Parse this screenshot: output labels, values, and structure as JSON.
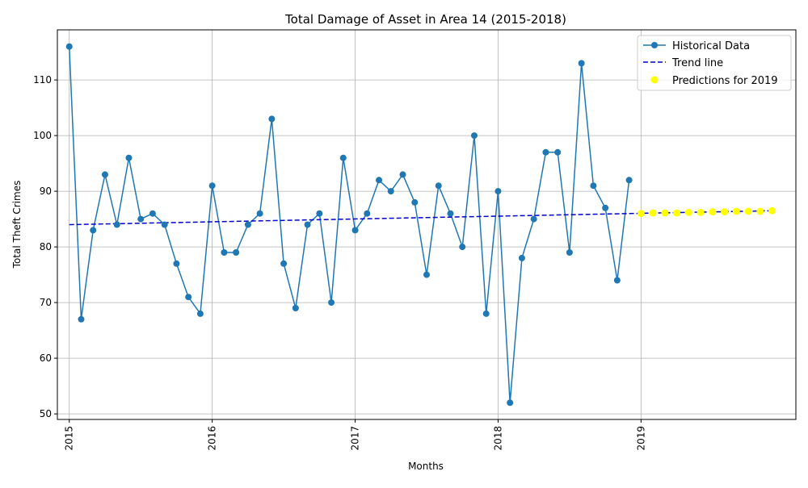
{
  "chart_data": {
    "type": "line",
    "title": "Total Damage of Asset in Area 14 (2015-2018)",
    "xlabel": "Months",
    "ylabel": "Total Theft Crimes",
    "x_ticks": [
      "2015",
      "2016",
      "2017",
      "2018",
      "2019"
    ],
    "y_ticks": [
      50,
      60,
      70,
      80,
      90,
      100,
      110
    ],
    "ylim": [
      49,
      119
    ],
    "xlim": [
      "2014-12",
      "2020-02"
    ],
    "grid": true,
    "legend_position": "top-right",
    "colors": {
      "historical": "#1f77b4",
      "trend": "#0000cc",
      "prediction": "#ffff00",
      "grid": "#b0b0b0"
    },
    "series": [
      {
        "name": "Historical Data",
        "style": "line-markers",
        "x": [
          "2015-01",
          "2015-02",
          "2015-03",
          "2015-04",
          "2015-05",
          "2015-06",
          "2015-07",
          "2015-08",
          "2015-09",
          "2015-10",
          "2015-11",
          "2015-12",
          "2016-01",
          "2016-02",
          "2016-03",
          "2016-04",
          "2016-05",
          "2016-06",
          "2016-07",
          "2016-08",
          "2016-09",
          "2016-10",
          "2016-11",
          "2016-12",
          "2017-01",
          "2017-02",
          "2017-03",
          "2017-04",
          "2017-05",
          "2017-06",
          "2017-07",
          "2017-08",
          "2017-09",
          "2017-10",
          "2017-11",
          "2017-12",
          "2018-01",
          "2018-02",
          "2018-03",
          "2018-04",
          "2018-05",
          "2018-06",
          "2018-07",
          "2018-08",
          "2018-09",
          "2018-10",
          "2018-11",
          "2018-12"
        ],
        "values": [
          116,
          67,
          83,
          93,
          84,
          96,
          85,
          86,
          84,
          77,
          71,
          68,
          91,
          79,
          79,
          84,
          86,
          103,
          77,
          69,
          84,
          86,
          70,
          96,
          83,
          86,
          92,
          90,
          93,
          88,
          75,
          91,
          86,
          80,
          100,
          68,
          90,
          52,
          78,
          85,
          97,
          97,
          79,
          113,
          91,
          87,
          74,
          92
        ]
      },
      {
        "name": "Trend line",
        "style": "dashed",
        "x": [
          "2015-01",
          "2019-12"
        ],
        "values": [
          84.0,
          86.5
        ]
      },
      {
        "name": "Predictions for 2019",
        "style": "scatter",
        "x": [
          "2019-01",
          "2019-02",
          "2019-03",
          "2019-04",
          "2019-05",
          "2019-06",
          "2019-07",
          "2019-08",
          "2019-09",
          "2019-10",
          "2019-11",
          "2019-12"
        ],
        "values": [
          86.0,
          86.1,
          86.1,
          86.1,
          86.2,
          86.2,
          86.3,
          86.3,
          86.4,
          86.4,
          86.4,
          86.5
        ]
      }
    ]
  }
}
